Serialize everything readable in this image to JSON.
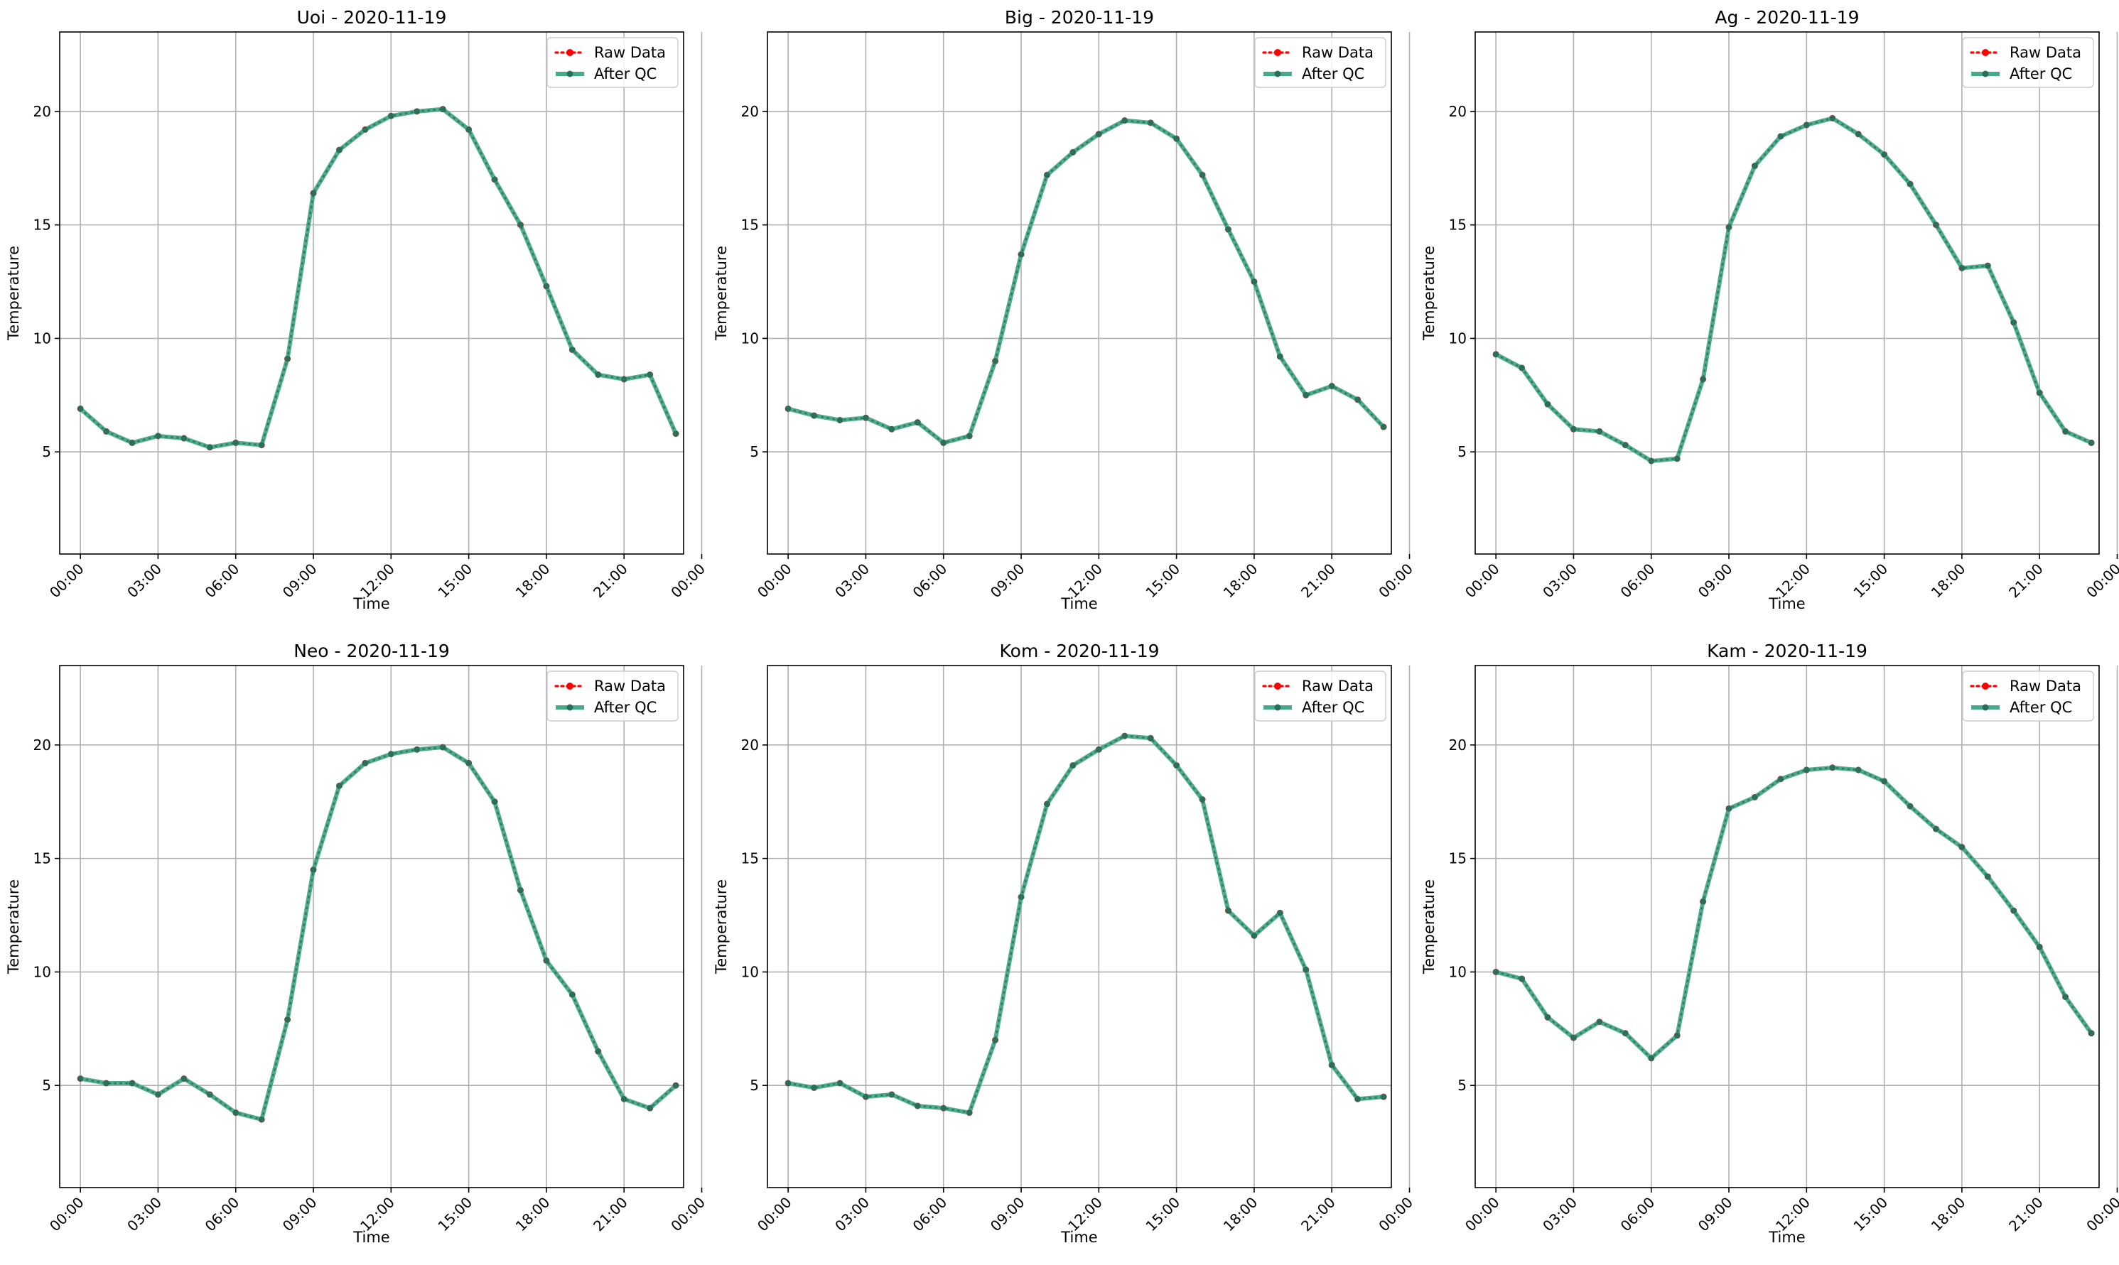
{
  "chart_data": [
    {
      "type": "line",
      "title": "Uoi - 2020-11-19",
      "xlabel": "Time",
      "ylabel": "Temperature",
      "ylim": [
        0.5,
        23.5
      ],
      "xlim": [
        -0.8,
        23.3
      ],
      "yticks": [
        5,
        10,
        15,
        20
      ],
      "xticks": [
        0,
        3,
        6,
        9,
        12,
        15,
        18,
        21,
        24
      ],
      "xtick_labels": [
        "00:00",
        "03:00",
        "06:00",
        "09:00",
        "12:00",
        "15:00",
        "18:00",
        "21:00",
        "00:00"
      ],
      "grid": true,
      "legend_position": "top-right",
      "x": [
        0,
        1,
        2,
        3,
        4,
        5,
        6,
        7,
        8,
        9,
        10,
        11,
        12,
        13,
        14,
        15,
        16,
        17,
        18,
        19,
        20,
        21,
        22,
        23
      ],
      "series": [
        {
          "name": "Raw Data",
          "values": [
            6.9,
            5.9,
            5.4,
            5.7,
            5.6,
            5.2,
            5.4,
            5.3,
            9.1,
            16.4,
            18.3,
            19.2,
            19.8,
            20.0,
            20.1,
            19.2,
            17.0,
            15.0,
            12.3,
            9.5,
            8.4,
            8.2,
            8.4,
            5.8
          ]
        },
        {
          "name": "After QC",
          "values": [
            6.9,
            5.9,
            5.4,
            5.7,
            5.6,
            5.2,
            5.4,
            5.3,
            9.1,
            16.4,
            18.3,
            19.2,
            19.8,
            20.0,
            20.1,
            19.2,
            17.0,
            15.0,
            12.3,
            9.5,
            8.4,
            8.2,
            8.4,
            5.8
          ]
        }
      ]
    },
    {
      "type": "line",
      "title": "Big - 2020-11-19",
      "xlabel": "Time",
      "ylabel": "Temperature",
      "ylim": [
        0.5,
        23.5
      ],
      "xlim": [
        -0.8,
        23.3
      ],
      "yticks": [
        5,
        10,
        15,
        20
      ],
      "xticks": [
        0,
        3,
        6,
        9,
        12,
        15,
        18,
        21,
        24
      ],
      "xtick_labels": [
        "00:00",
        "03:00",
        "06:00",
        "09:00",
        "12:00",
        "15:00",
        "18:00",
        "21:00",
        "00:00"
      ],
      "grid": true,
      "legend_position": "top-right",
      "x": [
        0,
        1,
        2,
        3,
        4,
        5,
        6,
        7,
        8,
        9,
        10,
        11,
        12,
        13,
        14,
        15,
        16,
        17,
        18,
        19,
        20,
        21,
        22,
        23
      ],
      "series": [
        {
          "name": "Raw Data",
          "values": [
            6.9,
            6.6,
            6.4,
            6.5,
            6.0,
            6.3,
            5.4,
            5.7,
            9.0,
            13.7,
            17.2,
            18.2,
            19.0,
            19.6,
            19.5,
            18.8,
            17.2,
            14.8,
            12.5,
            9.2,
            7.5,
            7.9,
            7.3,
            6.1
          ]
        },
        {
          "name": "After QC",
          "values": [
            6.9,
            6.6,
            6.4,
            6.5,
            6.0,
            6.3,
            5.4,
            5.7,
            9.0,
            13.7,
            17.2,
            18.2,
            19.0,
            19.6,
            19.5,
            18.8,
            17.2,
            14.8,
            12.5,
            9.2,
            7.5,
            7.9,
            7.3,
            6.1
          ]
        }
      ]
    },
    {
      "type": "line",
      "title": "Ag - 2020-11-19",
      "xlabel": "Time",
      "ylabel": "Temperature",
      "ylim": [
        0.5,
        23.5
      ],
      "xlim": [
        -0.8,
        23.3
      ],
      "yticks": [
        5,
        10,
        15,
        20
      ],
      "xticks": [
        0,
        3,
        6,
        9,
        12,
        15,
        18,
        21,
        24
      ],
      "xtick_labels": [
        "00:00",
        "03:00",
        "06:00",
        "09:00",
        "12:00",
        "15:00",
        "18:00",
        "21:00",
        "00:00"
      ],
      "grid": true,
      "legend_position": "top-right",
      "x": [
        0,
        1,
        2,
        3,
        4,
        5,
        6,
        7,
        8,
        9,
        10,
        11,
        12,
        13,
        14,
        15,
        16,
        17,
        18,
        19,
        20,
        21,
        22,
        23
      ],
      "series": [
        {
          "name": "Raw Data",
          "values": [
            9.3,
            8.7,
            7.1,
            6.0,
            5.9,
            5.3,
            4.6,
            4.7,
            8.2,
            14.9,
            17.6,
            18.9,
            19.4,
            19.7,
            19.0,
            18.1,
            16.8,
            15.0,
            13.1,
            13.2,
            10.7,
            7.6,
            5.9,
            5.4
          ]
        },
        {
          "name": "After QC",
          "values": [
            9.3,
            8.7,
            7.1,
            6.0,
            5.9,
            5.3,
            4.6,
            4.7,
            8.2,
            14.9,
            17.6,
            18.9,
            19.4,
            19.7,
            19.0,
            18.1,
            16.8,
            15.0,
            13.1,
            13.2,
            10.7,
            7.6,
            5.9,
            5.4
          ]
        }
      ]
    },
    {
      "type": "line",
      "title": "Neo - 2020-11-19",
      "xlabel": "Time",
      "ylabel": "Temperature",
      "ylim": [
        0.5,
        23.5
      ],
      "xlim": [
        -0.8,
        23.3
      ],
      "yticks": [
        5,
        10,
        15,
        20
      ],
      "xticks": [
        0,
        3,
        6,
        9,
        12,
        15,
        18,
        21,
        24
      ],
      "xtick_labels": [
        "00:00",
        "03:00",
        "06:00",
        "09:00",
        "12:00",
        "15:00",
        "18:00",
        "21:00",
        "00:00"
      ],
      "grid": true,
      "legend_position": "top-right",
      "x": [
        0,
        1,
        2,
        3,
        4,
        5,
        6,
        7,
        8,
        9,
        10,
        11,
        12,
        13,
        14,
        15,
        16,
        17,
        18,
        19,
        20,
        21,
        22,
        23
      ],
      "series": [
        {
          "name": "Raw Data",
          "values": [
            5.3,
            5.1,
            5.1,
            4.6,
            5.3,
            4.6,
            3.8,
            3.5,
            7.9,
            14.5,
            18.2,
            19.2,
            19.6,
            19.8,
            19.9,
            19.2,
            17.5,
            13.6,
            10.5,
            9.0,
            6.5,
            4.4,
            4.0,
            5.0
          ]
        },
        {
          "name": "After QC",
          "values": [
            5.3,
            5.1,
            5.1,
            4.6,
            5.3,
            4.6,
            3.8,
            3.5,
            7.9,
            14.5,
            18.2,
            19.2,
            19.6,
            19.8,
            19.9,
            19.2,
            17.5,
            13.6,
            10.5,
            9.0,
            6.5,
            4.4,
            4.0,
            5.0
          ]
        }
      ]
    },
    {
      "type": "line",
      "title": "Kom - 2020-11-19",
      "xlabel": "Time",
      "ylabel": "Temperature",
      "ylim": [
        0.5,
        23.5
      ],
      "xlim": [
        -0.8,
        23.3
      ],
      "yticks": [
        5,
        10,
        15,
        20
      ],
      "xticks": [
        0,
        3,
        6,
        9,
        12,
        15,
        18,
        21,
        24
      ],
      "xtick_labels": [
        "00:00",
        "03:00",
        "06:00",
        "09:00",
        "12:00",
        "15:00",
        "18:00",
        "21:00",
        "00:00"
      ],
      "grid": true,
      "legend_position": "top-right",
      "x": [
        0,
        1,
        2,
        3,
        4,
        5,
        6,
        7,
        8,
        9,
        10,
        11,
        12,
        13,
        14,
        15,
        16,
        17,
        18,
        19,
        20,
        21,
        22,
        23
      ],
      "series": [
        {
          "name": "Raw Data",
          "values": [
            5.1,
            4.9,
            5.1,
            4.5,
            4.6,
            4.1,
            4.0,
            3.8,
            7.0,
            13.3,
            17.4,
            19.1,
            19.8,
            20.4,
            20.3,
            19.1,
            17.6,
            12.7,
            11.6,
            12.6,
            10.1,
            5.9,
            4.4,
            4.5
          ]
        },
        {
          "name": "After QC",
          "values": [
            5.1,
            4.9,
            5.1,
            4.5,
            4.6,
            4.1,
            4.0,
            3.8,
            7.0,
            13.3,
            17.4,
            19.1,
            19.8,
            20.4,
            20.3,
            19.1,
            17.6,
            12.7,
            11.6,
            12.6,
            10.1,
            5.9,
            4.4,
            4.5
          ]
        }
      ]
    },
    {
      "type": "line",
      "title": "Kam - 2020-11-19",
      "xlabel": "Time",
      "ylabel": "Temperature",
      "ylim": [
        0.5,
        23.5
      ],
      "xlim": [
        -0.8,
        23.3
      ],
      "yticks": [
        5,
        10,
        15,
        20
      ],
      "xticks": [
        0,
        3,
        6,
        9,
        12,
        15,
        18,
        21,
        24
      ],
      "xtick_labels": [
        "00:00",
        "03:00",
        "06:00",
        "09:00",
        "12:00",
        "15:00",
        "18:00",
        "21:00",
        "00:00"
      ],
      "grid": true,
      "legend_position": "top-right",
      "x": [
        0,
        1,
        2,
        3,
        4,
        5,
        6,
        7,
        8,
        9,
        10,
        11,
        12,
        13,
        14,
        15,
        16,
        17,
        18,
        19,
        20,
        21,
        22,
        23
      ],
      "series": [
        {
          "name": "Raw Data",
          "values": [
            10.0,
            9.7,
            8.0,
            7.1,
            7.8,
            7.3,
            6.2,
            7.2,
            13.1,
            17.2,
            17.7,
            18.5,
            18.9,
            19.0,
            18.9,
            18.4,
            17.3,
            16.3,
            15.5,
            14.2,
            12.7,
            11.1,
            8.9,
            7.3
          ]
        },
        {
          "name": "After QC",
          "values": [
            10.0,
            9.7,
            8.0,
            7.1,
            7.8,
            7.3,
            6.2,
            7.2,
            13.1,
            17.2,
            17.7,
            18.5,
            18.9,
            19.0,
            18.9,
            18.4,
            17.3,
            16.3,
            15.5,
            14.2,
            12.7,
            11.1,
            8.9,
            7.3
          ]
        }
      ]
    }
  ],
  "colors": {
    "raw": "#ff0000",
    "qc_line": "#44aa88",
    "qc_marker": "#2a6f5a",
    "grid": "#b0b0b0",
    "axis": "#000000"
  }
}
